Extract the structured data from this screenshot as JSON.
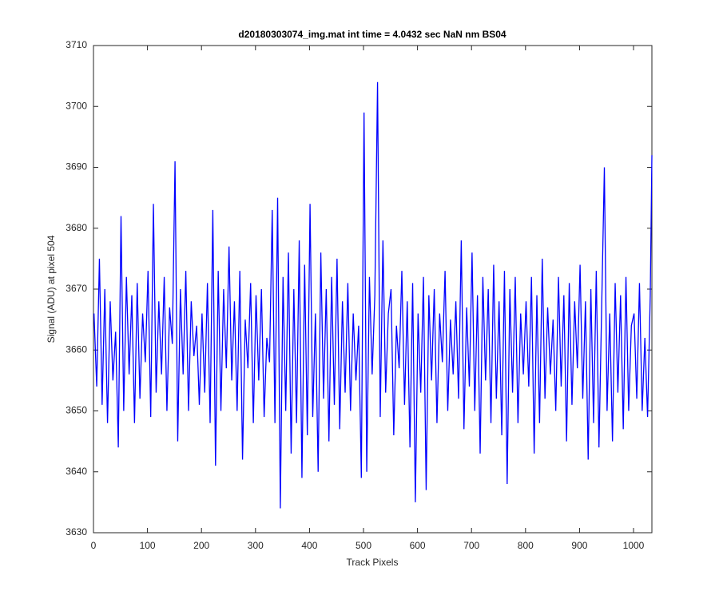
{
  "chart_data": {
    "type": "line",
    "title": "d20180303074_img.mat int time = 4.0432 sec  NaN nm BS04",
    "x_label": "Track Pixels",
    "y_label": "Signal (ADU) at pixel 504",
    "xlim": [
      0,
      1034
    ],
    "xticks": [
      0,
      100,
      200,
      300,
      400,
      500,
      600,
      700,
      800,
      900,
      1000
    ],
    "ylim": [
      3630,
      3710
    ],
    "yticks": [
      3630,
      3640,
      3650,
      3660,
      3670,
      3680,
      3690,
      3700,
      3710
    ],
    "grid": false,
    "series": [
      {
        "color": "#0000ff",
        "x": [
          1,
          6,
          11,
          16,
          21,
          26,
          31,
          36,
          41,
          46,
          51,
          56,
          61,
          66,
          71,
          76,
          81,
          86,
          91,
          96,
          101,
          106,
          111,
          116,
          121,
          126,
          131,
          136,
          141,
          146,
          151,
          156,
          161,
          166,
          171,
          176,
          181,
          186,
          191,
          196,
          201,
          206,
          211,
          216,
          221,
          226,
          231,
          236,
          241,
          246,
          251,
          256,
          261,
          266,
          271,
          276,
          281,
          286,
          291,
          296,
          301,
          306,
          311,
          316,
          321,
          326,
          331,
          336,
          341,
          346,
          351,
          356,
          361,
          366,
          371,
          376,
          381,
          386,
          391,
          396,
          401,
          406,
          411,
          416,
          421,
          426,
          431,
          436,
          441,
          446,
          451,
          456,
          461,
          466,
          471,
          476,
          481,
          486,
          491,
          496,
          501,
          506,
          511,
          516,
          521,
          526,
          531,
          536,
          541,
          546,
          551,
          556,
          561,
          566,
          571,
          576,
          581,
          586,
          591,
          596,
          601,
          606,
          611,
          616,
          621,
          626,
          631,
          636,
          641,
          646,
          651,
          656,
          661,
          666,
          671,
          676,
          681,
          686,
          691,
          696,
          701,
          706,
          711,
          716,
          721,
          726,
          731,
          736,
          741,
          746,
          751,
          756,
          761,
          766,
          771,
          776,
          781,
          786,
          791,
          796,
          801,
          806,
          811,
          816,
          821,
          826,
          831,
          836,
          841,
          846,
          851,
          856,
          861,
          866,
          871,
          876,
          881,
          886,
          891,
          896,
          901,
          906,
          911,
          916,
          921,
          926,
          931,
          936,
          941,
          946,
          951,
          956,
          961,
          966,
          971,
          976,
          981,
          986,
          991,
          996,
          1001,
          1006,
          1011,
          1016,
          1021,
          1026,
          1031,
          1034
        ],
        "values": [
          3666,
          3654,
          3675,
          3651,
          3670,
          3648,
          3668,
          3655,
          3663,
          3644,
          3682,
          3650,
          3672,
          3656,
          3669,
          3648,
          3671,
          3652,
          3666,
          3658,
          3673,
          3649,
          3684,
          3653,
          3668,
          3656,
          3672,
          3650,
          3667,
          3661,
          3691,
          3645,
          3670,
          3656,
          3673,
          3650,
          3668,
          3659,
          3664,
          3651,
          3666,
          3653,
          3671,
          3648,
          3683,
          3641,
          3673,
          3650,
          3670,
          3657,
          3677,
          3655,
          3668,
          3650,
          3673,
          3642,
          3665,
          3657,
          3671,
          3648,
          3669,
          3655,
          3670,
          3649,
          3662,
          3658,
          3683,
          3648,
          3685,
          3634,
          3672,
          3650,
          3676,
          3643,
          3670,
          3648,
          3678,
          3639,
          3674,
          3646,
          3684,
          3649,
          3666,
          3640,
          3676,
          3652,
          3670,
          3645,
          3672,
          3651,
          3675,
          3647,
          3668,
          3653,
          3671,
          3650,
          3666,
          3655,
          3664,
          3639,
          3699,
          3640,
          3672,
          3656,
          3669,
          3704,
          3649,
          3678,
          3653,
          3666,
          3670,
          3646,
          3664,
          3657,
          3673,
          3651,
          3668,
          3644,
          3671,
          3635,
          3666,
          3653,
          3672,
          3637,
          3669,
          3655,
          3670,
          3648,
          3666,
          3658,
          3673,
          3650,
          3665,
          3656,
          3668,
          3652,
          3678,
          3647,
          3667,
          3654,
          3676,
          3650,
          3669,
          3643,
          3672,
          3655,
          3670,
          3648,
          3674,
          3652,
          3668,
          3646,
          3673,
          3638,
          3670,
          3653,
          3672,
          3648,
          3666,
          3656,
          3668,
          3654,
          3672,
          3643,
          3669,
          3648,
          3675,
          3652,
          3667,
          3656,
          3665,
          3650,
          3672,
          3654,
          3669,
          3645,
          3671,
          3651,
          3668,
          3657,
          3674,
          3652,
          3668,
          3642,
          3670,
          3648,
          3673,
          3644,
          3667,
          3690,
          3650,
          3666,
          3645,
          3671,
          3653,
          3669,
          3647,
          3672,
          3650,
          3664,
          3666,
          3652,
          3671,
          3650,
          3662,
          3649,
          3669,
          3692
        ]
      }
    ]
  }
}
